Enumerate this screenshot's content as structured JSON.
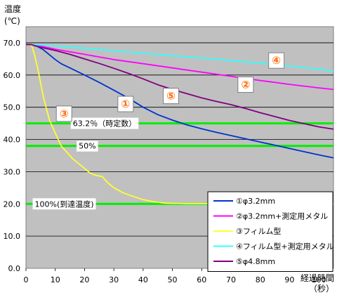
{
  "chart_data": {
    "type": "line",
    "ylabel_line1": "温度",
    "ylabel_line2": "(℃)",
    "xlabel_line1": "経過時間",
    "xlabel_line2": "（秒）",
    "xlim": [
      0,
      105
    ],
    "ylim": [
      0,
      75
    ],
    "x_ticks": [
      0,
      10,
      20,
      30,
      40,
      50,
      60,
      70,
      80,
      90,
      100
    ],
    "y_ticks": [
      0,
      10,
      20,
      30,
      40,
      50,
      60,
      70
    ],
    "y_tick_labels": [
      "0.0",
      "10.0",
      "20.0",
      "30.0",
      "40.0",
      "50.0",
      "60.0",
      "70.0"
    ],
    "grid_y": true,
    "background": "#c0c0c0",
    "reference_lines": [
      {
        "y": 45,
        "label": "63.2％（時定数）",
        "label_x": 16,
        "color": "#00ee00"
      },
      {
        "y": 38,
        "label": "50%",
        "label_x": 18,
        "color": "#00ee00"
      },
      {
        "y": 20,
        "label": "100%(到達温度)",
        "label_x": 3,
        "color": "#00ee00"
      }
    ],
    "series": [
      {
        "name": "①φ3.2mm",
        "marker": "①",
        "color": "#0033cc",
        "x": [
          0,
          2,
          4,
          6,
          8,
          10,
          12,
          15,
          20,
          25,
          30,
          35,
          40,
          45,
          50,
          55,
          60,
          65,
          70,
          75,
          80,
          85,
          90,
          95,
          100,
          105
        ],
        "y": [
          69.5,
          69.4,
          68.8,
          67.8,
          66.3,
          64.8,
          63.5,
          62.2,
          60,
          57.7,
          55.3,
          52.8,
          50,
          47.7,
          46,
          44.5,
          43.3,
          42.2,
          41.2,
          40.2,
          39.2,
          38.2,
          37.2,
          36.2,
          35.2,
          34.3
        ]
      },
      {
        "name": "②φ3.2mm+測定用メタル",
        "marker": "②",
        "color": "#ff00ff",
        "x": [
          0,
          2,
          5,
          10,
          15,
          20,
          30,
          40,
          50,
          60,
          70,
          80,
          90,
          100,
          105
        ],
        "y": [
          69.5,
          69.5,
          69,
          68,
          67.2,
          66.4,
          64.8,
          63.5,
          62.2,
          60.9,
          59.6,
          58.3,
          57.1,
          56,
          55.5
        ]
      },
      {
        "name": "③フィルム型",
        "marker": "③",
        "color": "#ffff33",
        "x": [
          0,
          1,
          2,
          3,
          4,
          6,
          8,
          10,
          12,
          14,
          16,
          18,
          20,
          22,
          24,
          26,
          28,
          30,
          33,
          36,
          40,
          44,
          48,
          55,
          60,
          70,
          80,
          90,
          100,
          105
        ],
        "y": [
          69.5,
          69.5,
          69,
          66,
          62,
          53,
          46,
          42,
          38,
          36,
          34,
          32.5,
          31,
          29.5,
          28.8,
          28.5,
          26.5,
          25,
          23.5,
          22.5,
          21.3,
          20.6,
          20.2,
          20.1,
          20.1,
          20,
          20,
          20,
          20,
          20
        ]
      },
      {
        "name": "④フィルム型+測定用メタル",
        "marker": "④",
        "color": "#33ffff",
        "x": [
          0,
          2,
          5,
          10,
          20,
          30,
          40,
          50,
          60,
          70,
          80,
          90,
          100,
          105
        ],
        "y": [
          69.5,
          69.5,
          69.3,
          69,
          68.3,
          67.5,
          66.8,
          66,
          65.3,
          64.5,
          63.7,
          62.8,
          61.8,
          61.2
        ]
      },
      {
        "name": "⑤φ4.8mm",
        "marker": "⑤",
        "color": "#800080",
        "x": [
          0,
          2,
          5,
          10,
          15,
          20,
          25,
          30,
          35,
          40,
          45,
          50,
          55,
          60,
          65,
          70,
          75,
          80,
          85,
          90,
          95,
          100,
          105
        ],
        "y": [
          69.5,
          69.4,
          68.6,
          67.6,
          66.4,
          65,
          63.6,
          62.1,
          60.5,
          58.8,
          57,
          55.5,
          54.2,
          52.9,
          51.8,
          50.8,
          49.6,
          48.3,
          47.1,
          45.9,
          44.9,
          43.9,
          43.2
        ]
      }
    ],
    "annotations": [
      {
        "text": "①",
        "x": 34,
        "y": 51
      },
      {
        "text": "②",
        "x": 75,
        "y": 57
      },
      {
        "text": "③",
        "x": 13,
        "y": 48
      },
      {
        "text": "④",
        "x": 85.5,
        "y": 64.5
      },
      {
        "text": "⑤",
        "x": 49.5,
        "y": 53.5
      }
    ],
    "legend_position": "bottom-right"
  }
}
